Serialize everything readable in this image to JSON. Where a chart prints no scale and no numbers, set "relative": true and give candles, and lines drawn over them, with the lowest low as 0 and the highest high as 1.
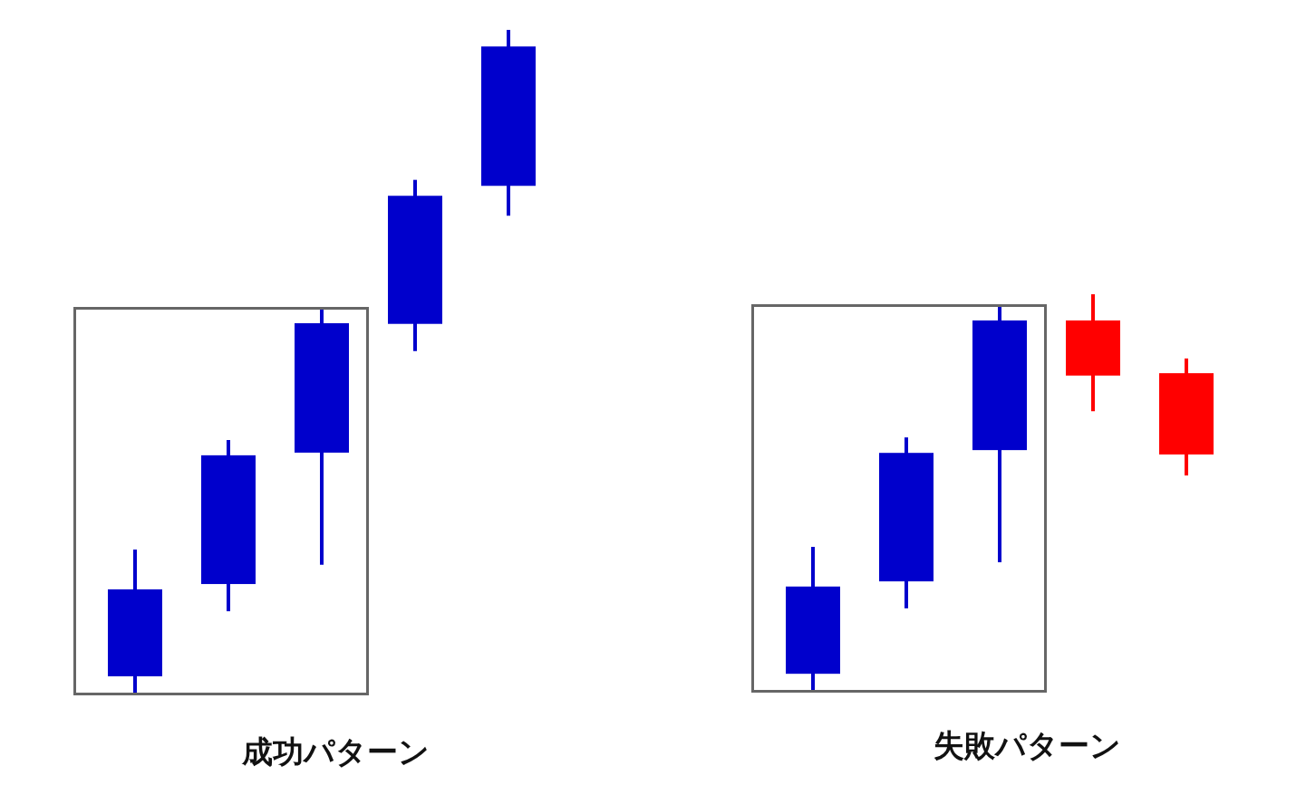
{
  "chart_data": [
    {
      "type": "candlestick",
      "title": "成功パターン",
      "relative": true,
      "categories": [
        null,
        null,
        null,
        null,
        null
      ],
      "ohlc": [
        [
          0.026,
          0.217,
          0,
          0.157
        ],
        [
          0.165,
          0.382,
          0.124,
          0.359
        ],
        [
          0.363,
          0.581,
          0.194,
          0.558
        ],
        [
          0.557,
          0.774,
          0.516,
          0.75
        ],
        [
          0.765,
          1,
          0.72,
          0.975
        ]
      ],
      "colors": [
        "#0000cc",
        "#0000cc",
        "#0000cc",
        "#0000cc",
        "#0000cc"
      ]
    },
    {
      "type": "candlestick",
      "title": "失敗パターン",
      "relative": true,
      "categories": [
        null,
        null,
        null,
        null,
        null
      ],
      "ohlc": [
        [
          0.043,
          0.363,
          0,
          0.263
        ],
        [
          0.276,
          0.639,
          0.208,
          0.6
        ],
        [
          0.607,
          0.973,
          0.324,
          0.934
        ],
        [
          0.934,
          1,
          0.705,
          0.795
        ],
        [
          0.801,
          0.838,
          0.543,
          0.596
        ]
      ],
      "colors": [
        "#0000cc",
        "#0000cc",
        "#0000cc",
        "#ff0000",
        "#ff0000"
      ]
    }
  ]
}
